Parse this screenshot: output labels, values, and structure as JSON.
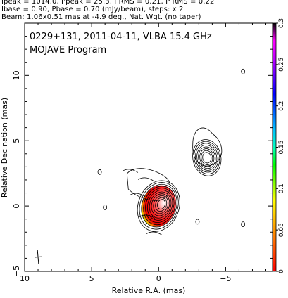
{
  "header": {
    "line1": "Ipeak = 1014.0, Ppeak = 25.3, I RMS = 0.21, P RMS = 0.22",
    "line2": "Ibase = 0.90, Pbase = 0.70 (mJy/beam), steps: x 2",
    "line3": "Beam: 1.06x0.51 mas at -4.9 deg., Nat. Wgt. (no taper)"
  },
  "chart_data": {
    "type": "contour",
    "annotation_line1": "0229+131, 2011-04-11, VLBA 15.4 GHz",
    "annotation_line2": "MOJAVE Program",
    "xlabel": "Relative R.A. (mas)",
    "ylabel": "Relative Decination (mas)",
    "xlim": [
      10,
      -8.5
    ],
    "ylim": [
      -5,
      14
    ],
    "x_ticks": [
      10,
      5,
      0,
      -5
    ],
    "y_ticks": [
      -5,
      0,
      5,
      10
    ],
    "x_tick_labels": [
      "10",
      "5",
      "0",
      "−5"
    ],
    "y_tick_labels": [
      "−5",
      "0",
      "5",
      "10"
    ],
    "colorbar": {
      "min": 0,
      "max": 0.3,
      "ticks": [
        0,
        0.05,
        0.1,
        0.15,
        0.2,
        0.25,
        0.3
      ],
      "tick_labels": [
        "0",
        "0.05",
        "0.1",
        "0.15",
        "0.2",
        "0.25",
        "0.3"
      ],
      "colors": [
        "#ff0000",
        "#ff4000",
        "#ff8000",
        "#ffc000",
        "#ffff00",
        "#80ff00",
        "#00ff00",
        "#00ffc0",
        "#00c0ff",
        "#0060ff",
        "#0000ff",
        "#6000ff",
        "#c000ff",
        "#ff00ff",
        "#000000"
      ]
    },
    "contour_components": [
      {
        "name": "core",
        "x": 0.0,
        "y": 0.0,
        "levels": 11
      },
      {
        "name": "jet",
        "x": -3.6,
        "y": 3.7,
        "levels": 8
      }
    ],
    "beam": {
      "major": 1.06,
      "minor": 0.51,
      "pa_deg": -4.9
    }
  }
}
